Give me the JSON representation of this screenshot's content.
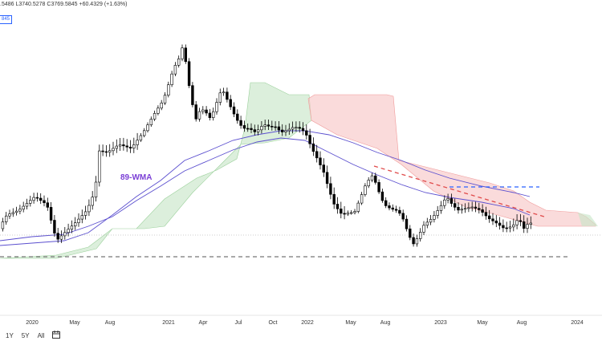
{
  "header": {
    "ohlc_text": ".5486  L3740.5278  C3769.5845  +60.4329 (+1.63%)",
    "price_tag": "845"
  },
  "range_buttons": [
    {
      "label": "1Y"
    },
    {
      "label": "5Y"
    },
    {
      "label": "All"
    }
  ],
  "icons": {
    "calendar": "calendar-icon"
  },
  "colors": {
    "bull_candle": "#ffffff",
    "bear_candle": "#000000",
    "wma_line": "#5b4fcf",
    "kumo_bull": "#c9e6c9",
    "kumo_bear": "#f8c7c7",
    "dashed_red": "#e04a4a",
    "dashed_blue": "#2962ff",
    "dashed_gray": "#777777",
    "annotation": "#7b3fd6"
  },
  "chart_data": {
    "type": "candlestick",
    "x_tick_labels": [
      "2020",
      "May",
      "Aug",
      "2021",
      "Apr",
      "Jul",
      "Oct",
      "2022",
      "May",
      "Aug",
      "2023",
      "May",
      "Aug",
      "2024"
    ],
    "annotations": [
      {
        "text": "89-WMA"
      }
    ],
    "series": [
      {
        "name": "89-WMA",
        "style": "line"
      }
    ],
    "kumo_cloud": true,
    "horizontal_levels": [
      "dashed support (gray)",
      "dotted last price (gray)",
      "dashed resistance (blue)",
      "dashed trendline (red)"
    ]
  }
}
